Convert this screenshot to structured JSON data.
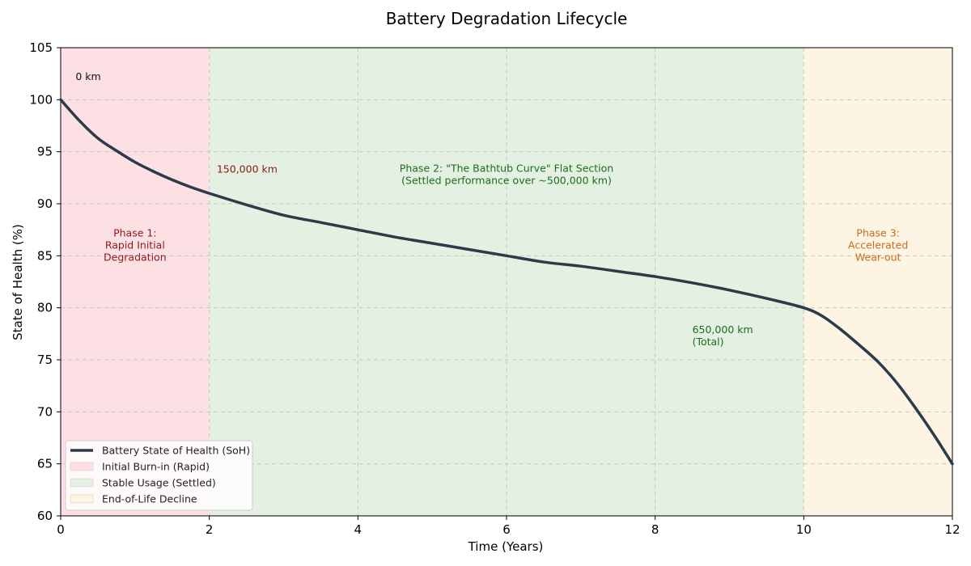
{
  "chart_data": {
    "type": "line",
    "title": "Battery Degradation Lifecycle",
    "xlabel": "Time (Years)",
    "ylabel": "State of Health (%)",
    "xlim": [
      0,
      12
    ],
    "ylim": [
      60,
      105
    ],
    "xticks": [
      0,
      2,
      4,
      6,
      8,
      10,
      12
    ],
    "yticks": [
      60,
      65,
      70,
      75,
      80,
      85,
      90,
      95,
      100,
      105
    ],
    "grid": true,
    "legend_position": "lower-left",
    "series": [
      {
        "name": "Battery State of Health (SoH)",
        "color": "#2d3a4a",
        "x": [
          0,
          0.25,
          0.5,
          0.75,
          1,
          1.25,
          1.5,
          1.75,
          2,
          2.5,
          3,
          3.5,
          4,
          4.5,
          5,
          5.5,
          6,
          6.5,
          7,
          7.5,
          8,
          8.5,
          9,
          9.5,
          10,
          10.25,
          10.5,
          10.75,
          11,
          11.25,
          11.5,
          11.75,
          12
        ],
        "y": [
          100,
          98,
          96.3,
          95.1,
          94.0,
          93.1,
          92.3,
          91.6,
          91.0,
          89.9,
          88.9,
          88.2,
          87.5,
          86.8,
          86.2,
          85.6,
          85.0,
          84.4,
          84.0,
          83.5,
          83.0,
          82.4,
          81.7,
          80.9,
          80.0,
          79.2,
          77.9,
          76.4,
          74.8,
          72.8,
          70.4,
          67.8,
          65.0
        ]
      }
    ],
    "regions": [
      {
        "name": "Initial Burn-in (Rapid)",
        "x_start": 0,
        "x_end": 2,
        "color": "#fde0e4"
      },
      {
        "name": "Stable Usage (Settled)",
        "x_start": 2,
        "x_end": 10,
        "color": "#e4f0e2"
      },
      {
        "name": "End-of-Life Decline",
        "x_start": 10,
        "x_end": 12,
        "color": "#fdf4e4"
      }
    ],
    "annotations": [
      {
        "lines": [
          "0 km"
        ],
        "x": 0.2,
        "y": 102.2,
        "color": "#111111",
        "anchor": "start"
      },
      {
        "lines": [
          "150,000 km"
        ],
        "x": 2.1,
        "y": 93.3,
        "color": "#8b1a1a",
        "anchor": "start"
      },
      {
        "lines": [
          "650,000 km",
          "(Total)"
        ],
        "x": 8.5,
        "y": 77.3,
        "color": "#1f6b1f",
        "anchor": "start"
      },
      {
        "lines": [
          "Phase 1:",
          "Rapid Initial",
          "Degradation"
        ],
        "x": 1.0,
        "y": 86.0,
        "color": "#8b1a1a",
        "anchor": "middle"
      },
      {
        "lines": [
          "Phase 2: \"The Bathtub Curve\" Flat Section",
          "(Settled performance over ~500,000 km)"
        ],
        "x": 6.0,
        "y": 92.8,
        "color": "#1f6b1f",
        "anchor": "middle"
      },
      {
        "lines": [
          "Phase 3:",
          "Accelerated",
          "Wear-out"
        ],
        "x": 11.0,
        "y": 86.0,
        "color": "#c96a1e",
        "anchor": "middle"
      }
    ]
  }
}
